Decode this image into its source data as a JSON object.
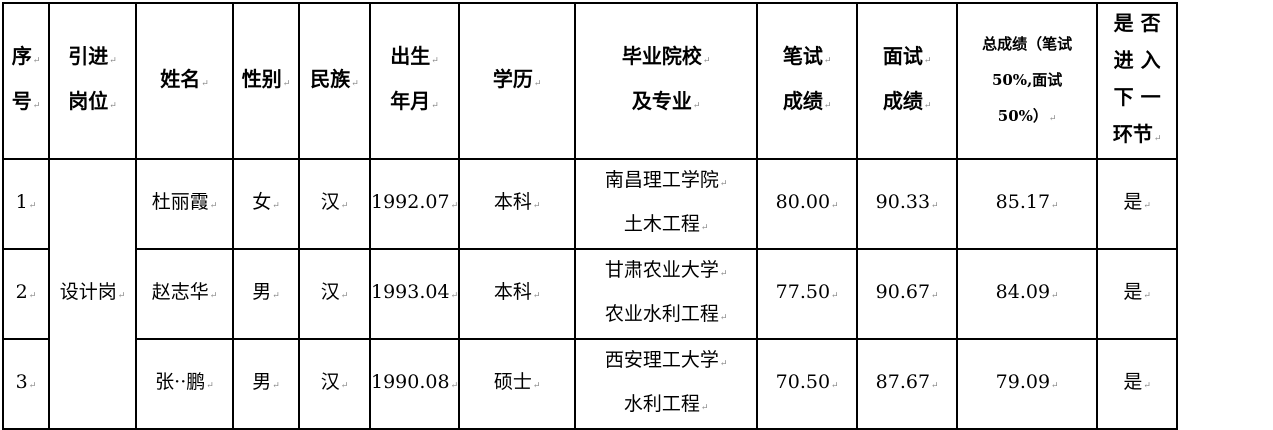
{
  "headers": {
    "seq": [
      "序",
      "号"
    ],
    "post": [
      "引进",
      "岗位"
    ],
    "name": "姓名",
    "gender": "性别",
    "ethnicity": "民族",
    "birth": [
      "出生",
      "年月"
    ],
    "education": "学历",
    "school": [
      "毕业院校",
      "及专业"
    ],
    "written": [
      "笔试",
      "成绩"
    ],
    "interview": [
      "面试",
      "成绩"
    ],
    "total": [
      "总成绩（笔试",
      "50%,面试",
      "50%）"
    ],
    "next": [
      "是 否",
      "进 入",
      "下 一",
      "环节"
    ]
  },
  "post": "设计岗",
  "rows": [
    {
      "seq": "1",
      "name": "杜丽霞",
      "gender": "女",
      "ethnicity": "汉",
      "birth": "1992.07",
      "education": "本科",
      "school": "南昌理工学院",
      "major": "土木工程",
      "written": "80.00",
      "interview": "90.33",
      "total": "85.17",
      "next": "是"
    },
    {
      "seq": "2",
      "name": "赵志华",
      "gender": "男",
      "ethnicity": "汉",
      "birth": "1993.04",
      "education": "本科",
      "school": "甘肃农业大学",
      "major": "农业水利工程",
      "written": "77.50",
      "interview": "90.67",
      "total": "84.09",
      "next": "是"
    },
    {
      "seq": "3",
      "name": "张··鹏",
      "gender": "男",
      "ethnicity": "汉",
      "birth": "1990.08",
      "education": "硕士",
      "school": "西安理工大学",
      "major": "水利工程",
      "written": "70.50",
      "interview": "87.67",
      "total": "79.09",
      "next": "是"
    }
  ]
}
